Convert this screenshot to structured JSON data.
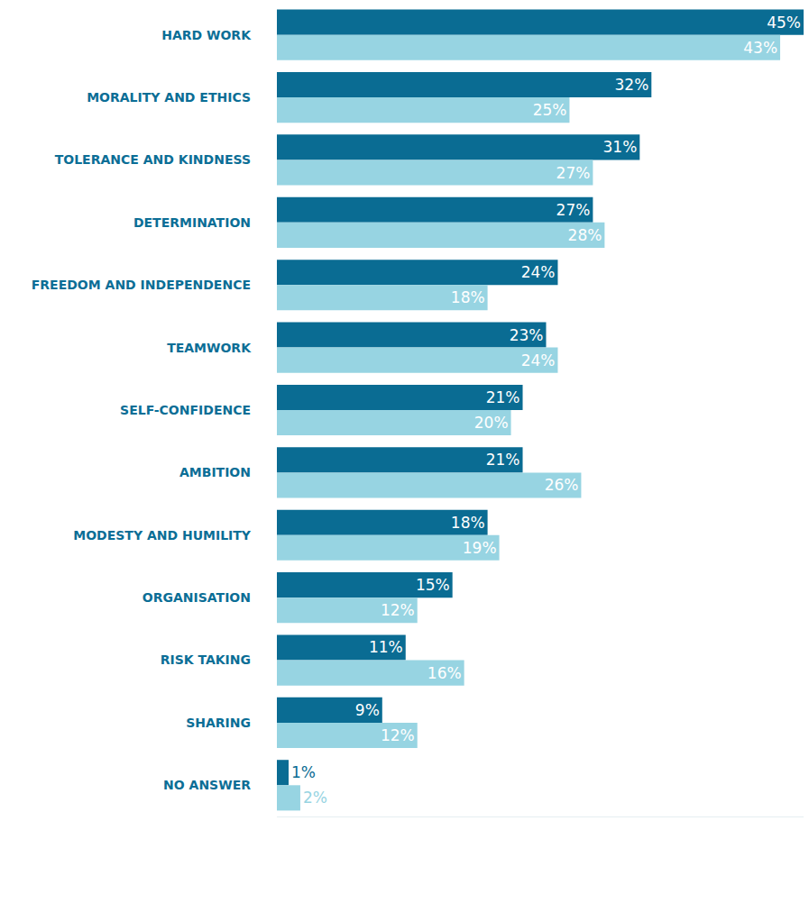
{
  "chart_data": {
    "type": "bar",
    "orientation": "horizontal",
    "categories": [
      "HARD WORK",
      "MORALITY AND ETHICS",
      "TOLERANCE AND KINDNESS",
      "DETERMINATION",
      "FREEDOM AND INDEPENDENCE",
      "TEAMWORK",
      "SELF-CONFIDENCE",
      "AMBITION",
      "MODESTY AND HUMILITY",
      "ORGANISATION",
      "RISK TAKING",
      "SHARING",
      "NO ANSWER"
    ],
    "series": [
      {
        "color": "#0a6c93",
        "values": [
          45,
          32,
          31,
          27,
          24,
          23,
          21,
          21,
          18,
          15,
          11,
          9,
          1
        ],
        "value_labels": [
          "45%",
          "32%",
          "31%",
          "27%",
          "24%",
          "23%",
          "21%",
          "21%",
          "18%",
          "15%",
          "11%",
          "9%",
          "1%"
        ]
      },
      {
        "color": "#97d4e2",
        "values": [
          43,
          25,
          27,
          28,
          18,
          24,
          20,
          26,
          19,
          12,
          16,
          12,
          2
        ],
        "value_labels": [
          "43%",
          "25%",
          "27%",
          "28%",
          "18%",
          "24%",
          "20%",
          "26%",
          "19%",
          "12%",
          "16%",
          "12%",
          "2%"
        ]
      }
    ],
    "xlim": [
      0,
      45
    ],
    "data_labels": true,
    "tick_labels": "y",
    "grid": false
  }
}
